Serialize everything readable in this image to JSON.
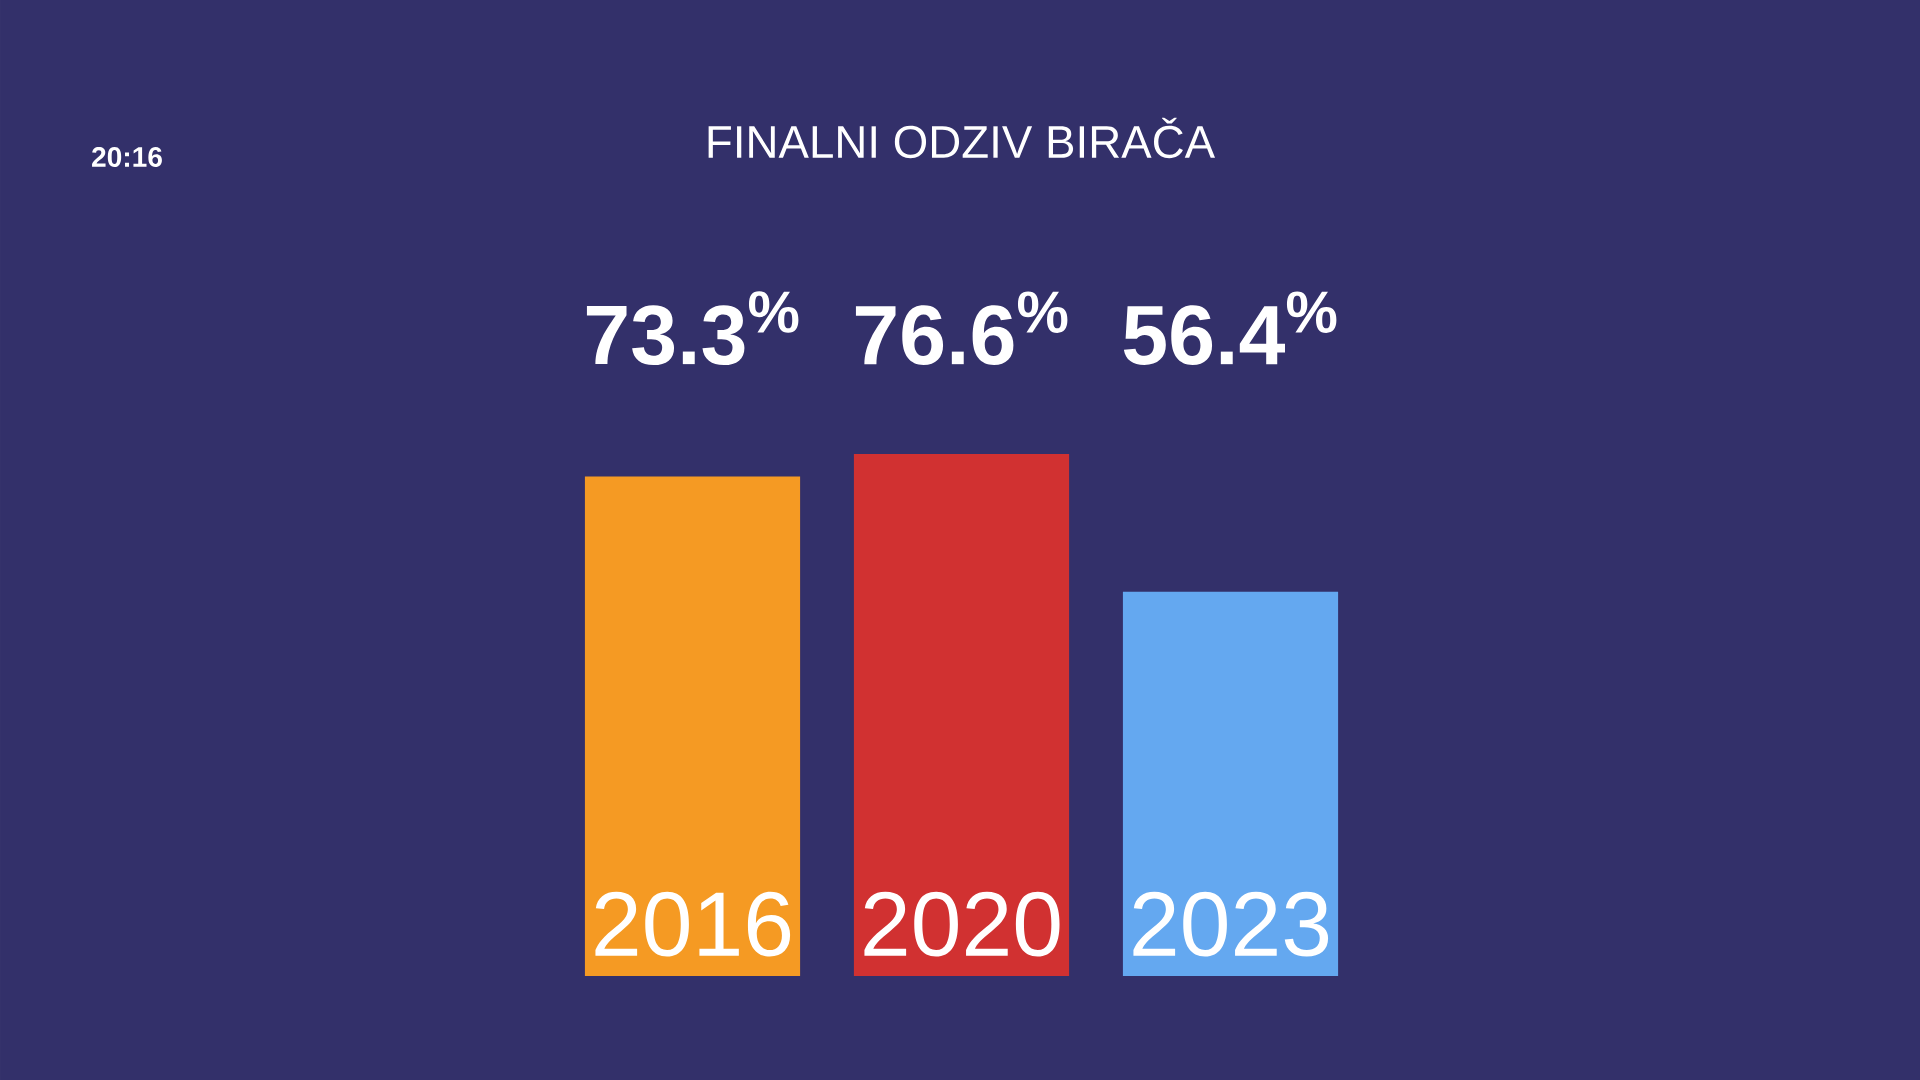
{
  "chart_data": {
    "type": "bar",
    "title": "FINALNI ODZIV BIRAČA",
    "categories": [
      "2016",
      "2020",
      "2023"
    ],
    "values": [
      73.3,
      76.6,
      56.4
    ],
    "colors": [
      "#f59a23",
      "#d13131",
      "#64a8f0"
    ],
    "data_labels": true,
    "value_labels": [
      "73.3$^{%}$",
      "76.6$^{%}$",
      "56.4$^{%}$"
    ],
    "tick_labels": false,
    "annotations": [
      "20:16"
    ]
  }
}
